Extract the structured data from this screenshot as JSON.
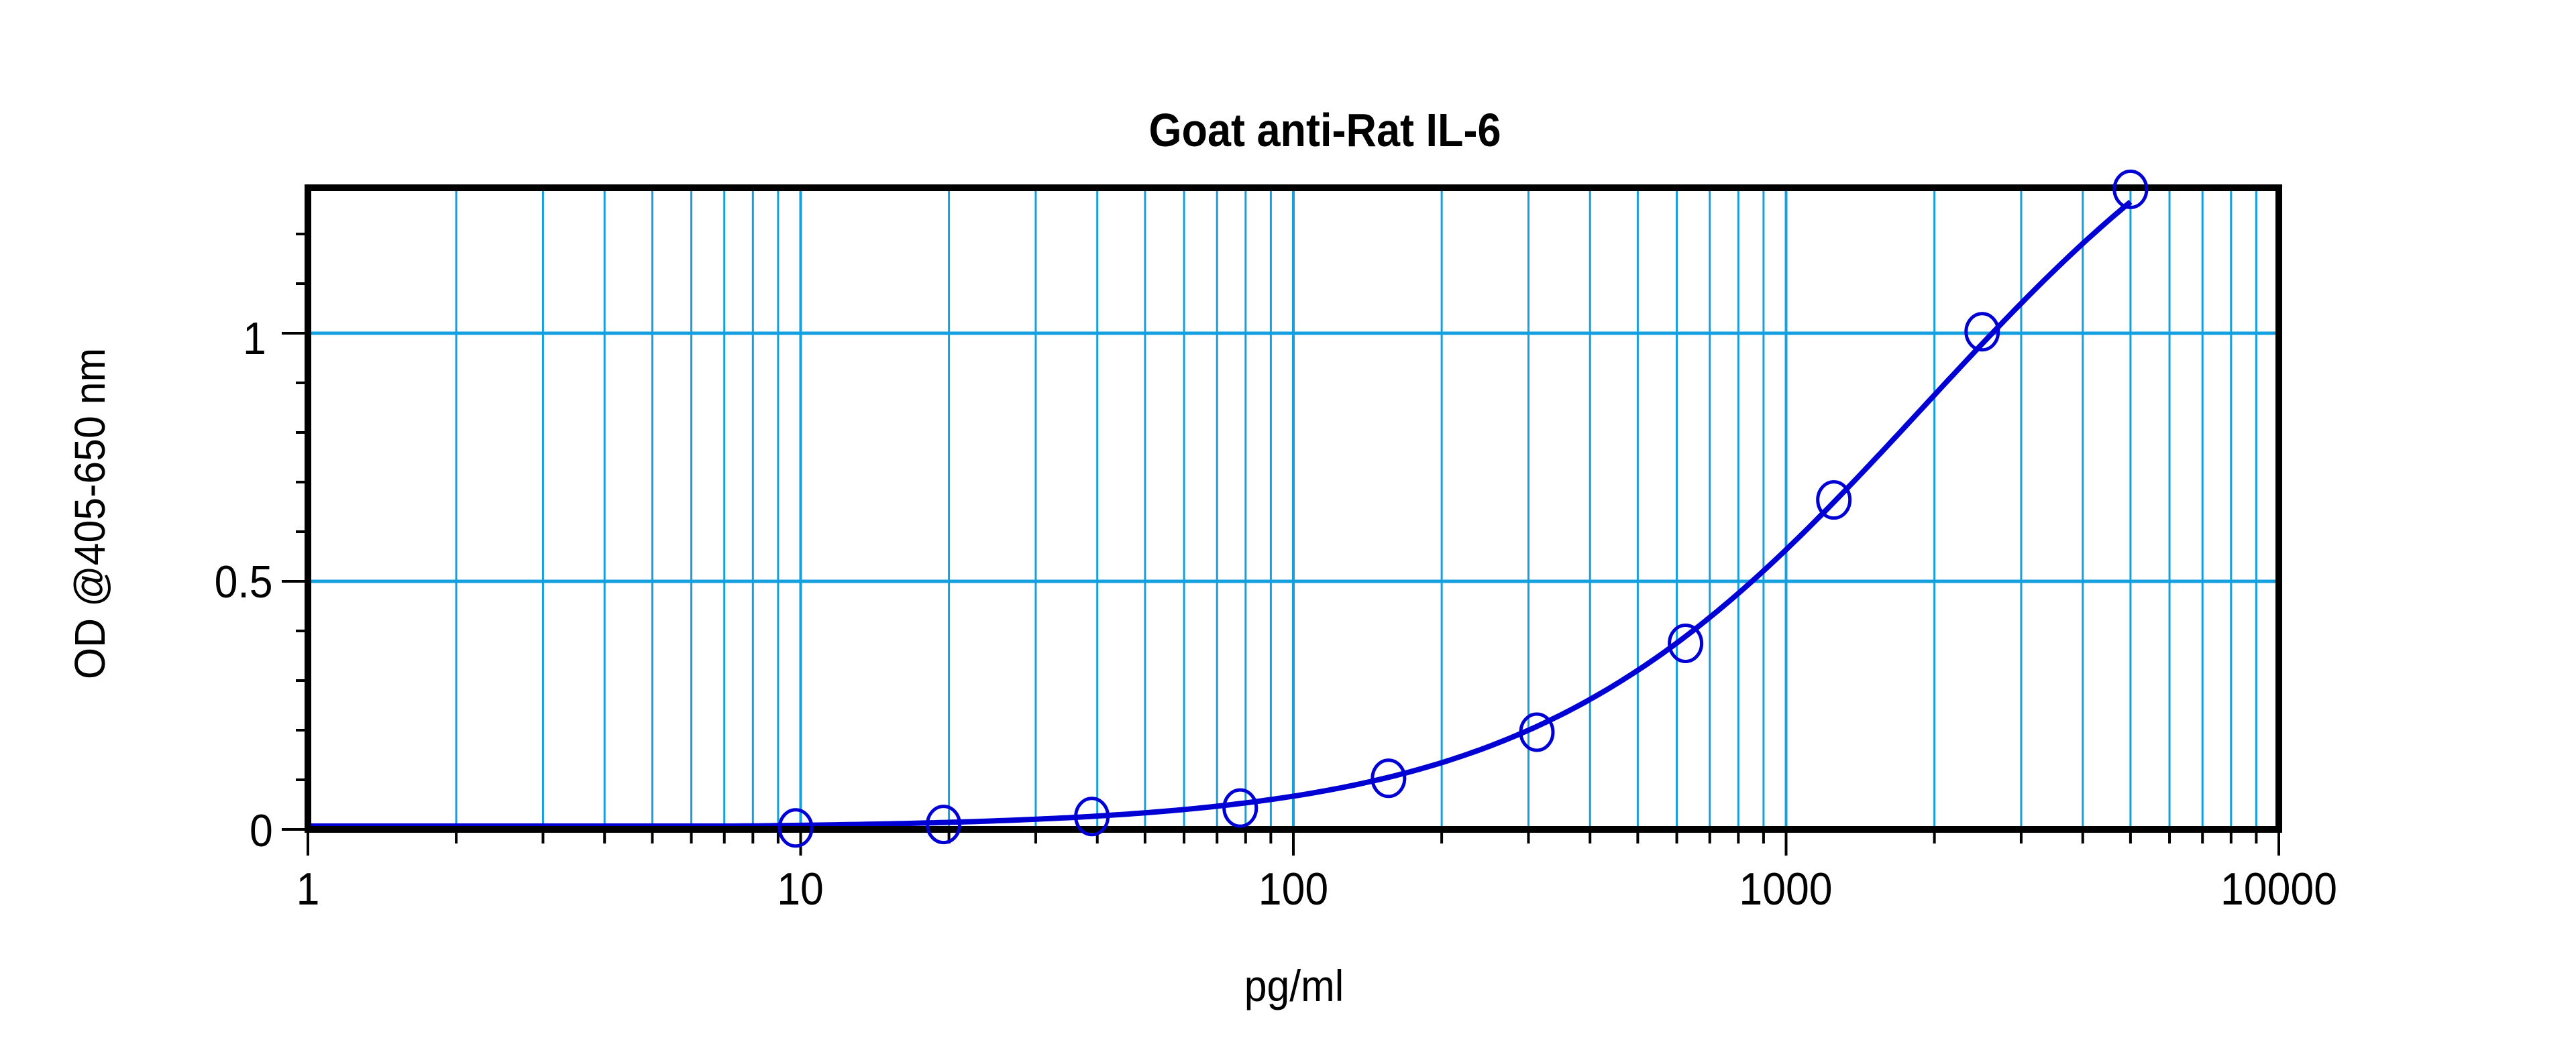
{
  "chart_data": {
    "type": "line",
    "title": "Goat anti-Rat IL-6",
    "xlabel": "pg/ml",
    "ylabel": "OD @405-650 nm",
    "xscale": "log",
    "xlim": [
      1,
      10000
    ],
    "ylim": [
      0,
      1.29
    ],
    "x_tick_labels": [
      "1",
      "10",
      "100",
      "1000",
      "10000"
    ],
    "x_ticks": [
      1,
      10,
      100,
      1000,
      10000
    ],
    "y_tick_labels": [
      "0",
      "0.5",
      "1"
    ],
    "y_ticks": [
      0,
      0.5,
      1
    ],
    "y_minor_step": 0.1,
    "grid": true,
    "legend": null,
    "series": [
      {
        "name": "Goat anti-Rat IL-6 standard curve",
        "marker": "open-circle",
        "x": [
          9.77,
          19.5,
          39,
          78,
          156,
          312,
          625,
          1250,
          2500,
          5000
        ],
        "values": [
          0.003,
          0.01,
          0.026,
          0.043,
          0.103,
          0.196,
          0.375,
          0.664,
          1.003,
          1.29
        ]
      }
    ],
    "fit_curve": {
      "model": "4PL",
      "bottom": 0.003,
      "top": 1.7,
      "ec50": 1900,
      "slope": 1.1,
      "x_range": [
        1,
        5000
      ]
    }
  },
  "colors": {
    "background": "#ffffff",
    "frame": "#000000",
    "grid": "#14a0de",
    "series": "#0000d4",
    "text": "#000000"
  }
}
